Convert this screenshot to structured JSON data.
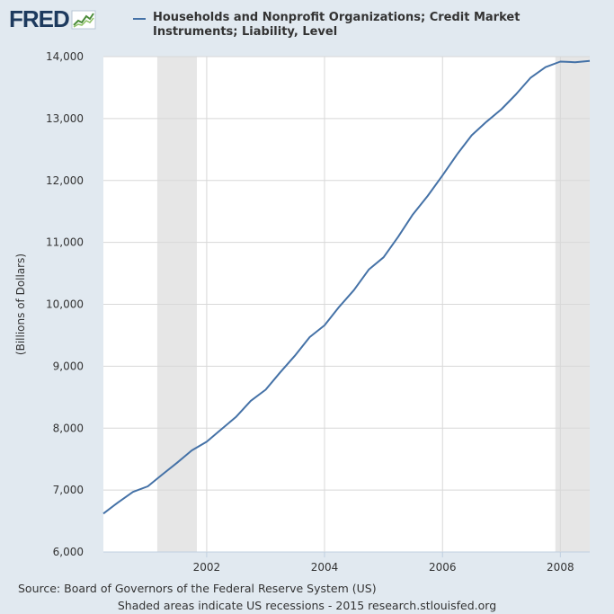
{
  "logo": {
    "text": "FRED",
    "icon": "trend-chart-icon"
  },
  "legend": {
    "label": "Households and Nonprofit Organizations; Credit Market Instruments; Liability, Level",
    "color": "#4572a7"
  },
  "footer": {
    "source": "Source: Board of Governors of the Federal Reserve System (US)",
    "note": "Shaded areas indicate US recessions - 2015 research.stlouisfed.org"
  },
  "chart_data": {
    "type": "line",
    "title": "",
    "xlabel": "",
    "ylabel": "(Billions of Dollars)",
    "ylim": [
      6000,
      14000
    ],
    "xlim": [
      "2000-04-01",
      "2008-07-01"
    ],
    "y_ticks": [
      6000,
      7000,
      8000,
      9000,
      10000,
      11000,
      12000,
      13000,
      14000
    ],
    "y_tick_labels": [
      "6,000",
      "7,000",
      "8,000",
      "9,000",
      "10,000",
      "11,000",
      "12,000",
      "13,000",
      "14,000"
    ],
    "x_ticks": [
      "2002-01-01",
      "2004-01-01",
      "2006-01-01",
      "2008-01-01"
    ],
    "x_tick_labels": [
      "2002",
      "2004",
      "2006",
      "2008"
    ],
    "grid": true,
    "line_color": "#4572a7",
    "recessions": [
      {
        "start": "2001-03-01",
        "end": "2001-11-01"
      },
      {
        "start": "2007-12-01",
        "end": "2008-07-01"
      }
    ],
    "series": [
      {
        "x": [
          "2000-04-01",
          "2000-07-01",
          "2000-10-01",
          "2001-01-01",
          "2001-04-01",
          "2001-07-01",
          "2001-10-01",
          "2002-01-01",
          "2002-04-01",
          "2002-07-01",
          "2002-10-01",
          "2003-01-01",
          "2003-04-01",
          "2003-07-01",
          "2003-10-01",
          "2004-01-01",
          "2004-04-01",
          "2004-07-01",
          "2004-10-01",
          "2005-01-01",
          "2005-04-01",
          "2005-07-01",
          "2005-10-01",
          "2006-01-01",
          "2006-04-01",
          "2006-07-01",
          "2006-10-01",
          "2007-01-01",
          "2007-04-01",
          "2007-07-01",
          "2007-10-01",
          "2008-01-01",
          "2008-04-01",
          "2008-07-01"
        ],
        "values": [
          6620,
          6800,
          6970,
          7060,
          7250,
          7440,
          7640,
          7780,
          7980,
          8180,
          8440,
          8620,
          8900,
          9170,
          9470,
          9660,
          9960,
          10230,
          10560,
          10760,
          11090,
          11450,
          11750,
          12080,
          12420,
          12730,
          12950,
          13150,
          13390,
          13660,
          13830,
          13920,
          13910,
          13930
        ]
      }
    ]
  }
}
